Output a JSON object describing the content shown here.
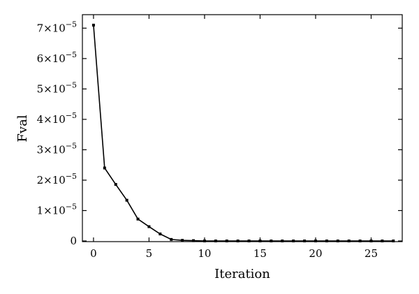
{
  "chart_data": {
    "type": "line",
    "title": "",
    "xlabel": "Iteration",
    "ylabel": "Fval",
    "xlim": [
      -1,
      27.8
    ],
    "ylim": [
      -2.22e-07,
      7.444e-05
    ],
    "xticks": [
      0,
      5,
      10,
      15,
      20,
      25
    ],
    "xtick_labels": [
      "0",
      "5",
      "10",
      "15",
      "20",
      "25"
    ],
    "yticks": [
      0,
      1e-05,
      2e-05,
      3e-05,
      4e-05,
      5e-05,
      6e-05,
      7e-05
    ],
    "ytick_labels": [
      {
        "mantissa": "0",
        "exp": ""
      },
      {
        "mantissa": "1×10",
        "exp": "−5"
      },
      {
        "mantissa": "2×10",
        "exp": "−5"
      },
      {
        "mantissa": "3×10",
        "exp": "−5"
      },
      {
        "mantissa": "4×10",
        "exp": "−5"
      },
      {
        "mantissa": "5×10",
        "exp": "−5"
      },
      {
        "mantissa": "6×10",
        "exp": "−5"
      },
      {
        "mantissa": "7×10",
        "exp": "−5"
      }
    ],
    "grid": false,
    "series": [
      {
        "x": [
          0,
          1,
          2,
          3,
          4,
          5,
          6,
          7,
          8,
          9,
          10,
          11,
          12,
          13,
          14,
          15,
          16,
          17,
          18,
          19,
          20,
          21,
          22,
          23,
          24,
          25,
          26,
          27
        ],
        "y": [
          7.1e-05,
          2.4e-05,
          1.86e-05,
          1.34e-05,
          7.2e-06,
          4.7e-06,
          2.3e-06,
          5e-07,
          2e-07,
          1e-07,
          0,
          0,
          0,
          0,
          0,
          0,
          0,
          0,
          0,
          0,
          0,
          0,
          0,
          0,
          0,
          0,
          0,
          0
        ],
        "color": "#000000",
        "marker": "square"
      }
    ]
  }
}
